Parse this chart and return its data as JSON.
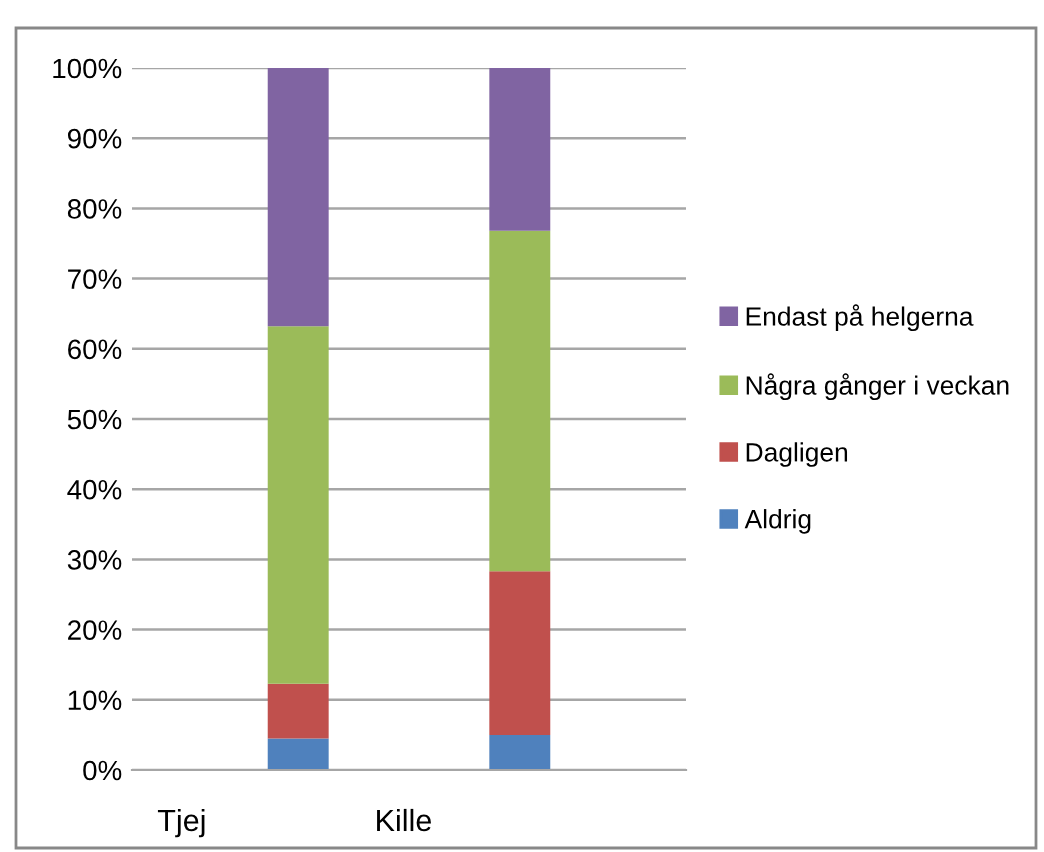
{
  "chart_data": {
    "type": "bar",
    "stacked": true,
    "categories": [
      "Tjej",
      null,
      "Kille",
      null,
      null
    ],
    "series": [
      {
        "name": "Aldrig",
        "color": "#4f81bd",
        "values": [
          null,
          4.5,
          null,
          5.0,
          null
        ]
      },
      {
        "name": "Dagligen",
        "color": "#c0504d",
        "values": [
          null,
          7.8,
          null,
          23.3,
          null
        ]
      },
      {
        "name": "Några gånger i veckan",
        "color": "#9bbb59",
        "values": [
          null,
          50.9,
          null,
          48.5,
          null
        ]
      },
      {
        "name": "Endast på helgerna",
        "color": "#8064a2",
        "values": [
          null,
          36.8,
          null,
          23.2,
          null
        ]
      }
    ],
    "ylim": [
      0,
      100
    ],
    "yticks": [
      {
        "value": 0,
        "label": "0%"
      },
      {
        "value": 10,
        "label": "10%"
      },
      {
        "value": 20,
        "label": "20%"
      },
      {
        "value": 30,
        "label": "30%"
      },
      {
        "value": 40,
        "label": "40%"
      },
      {
        "value": 50,
        "label": "50%"
      },
      {
        "value": 60,
        "label": "60%"
      },
      {
        "value": 70,
        "label": "70%"
      },
      {
        "value": 80,
        "label": "80%"
      },
      {
        "value": 90,
        "label": "90%"
      },
      {
        "value": 100,
        "label": "100%"
      }
    ],
    "grid": "y",
    "legend": "right"
  }
}
